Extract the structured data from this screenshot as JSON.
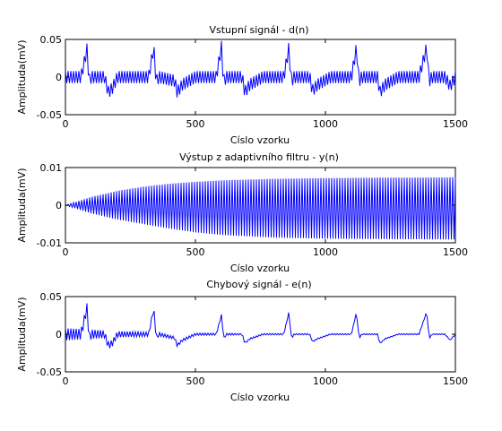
{
  "chart_data": [
    {
      "type": "line",
      "title": "Vstupní signál - d(n)",
      "xlabel": "Císlo vzorku",
      "ylabel": "Amplituda(mV)",
      "xlim": [
        0,
        1500
      ],
      "ylim": [
        -0.05,
        0.05
      ],
      "xticks": [
        0,
        500,
        1000,
        1500
      ],
      "xtick_labels": [
        "0",
        "500",
        "1000",
        "1500"
      ],
      "yticks": [
        -0.05,
        0,
        0.05
      ],
      "ytick_labels": [
        "-0.05",
        "0",
        "0.05"
      ],
      "grid": false,
      "series": [
        {
          "color": "#0000ff",
          "x": [
            0,
            60,
            85,
            88,
            92,
            100,
            150,
            165,
            180,
            200,
            250,
            320,
            340,
            345,
            350,
            360,
            420,
            430,
            450,
            500,
            580,
            600,
            605,
            610,
            620,
            680,
            690,
            710,
            760,
            840,
            860,
            865,
            870,
            880,
            940,
            950,
            970,
            1020,
            1100,
            1120,
            1125,
            1130,
            1140,
            1200,
            1210,
            1230,
            1280,
            1360,
            1390,
            1395,
            1400,
            1410,
            1460,
            1480,
            1500
          ],
          "y": [
            0,
            0,
            0.04,
            0.01,
            -0.005,
            0,
            0,
            -0.02,
            -0.015,
            0,
            0,
            0,
            0.04,
            0.01,
            -0.005,
            0,
            -0.005,
            -0.02,
            -0.01,
            0,
            0,
            0.04,
            0.01,
            -0.005,
            0,
            0,
            -0.02,
            -0.01,
            0,
            0,
            0.04,
            0.01,
            -0.005,
            0,
            0,
            -0.018,
            -0.01,
            0,
            0,
            0.04,
            0.01,
            -0.005,
            0,
            0,
            -0.02,
            -0.01,
            0,
            0,
            0.04,
            0.01,
            -0.005,
            0,
            0,
            -0.012,
            0
          ],
          "oscillation_envelope": {
            "x": [
              0,
              1500
            ],
            "upper": [
              0.008,
              0.008
            ],
            "lower": [
              -0.008,
              -0.008
            ]
          }
        }
      ]
    },
    {
      "type": "line",
      "title": "Výstup z adaptivního filtru - y(n)",
      "xlabel": "Císlo vzorku",
      "ylabel": "Amplituda(mV)",
      "xlim": [
        0,
        1500
      ],
      "ylim": [
        -0.01,
        0.01
      ],
      "xticks": [
        0,
        500,
        1000,
        1500
      ],
      "xtick_labels": [
        "0",
        "500",
        "1000",
        "1500"
      ],
      "yticks": [
        -0.01,
        0,
        0.01
      ],
      "ytick_labels": [
        "-0.01",
        "0",
        "0.01"
      ],
      "grid": false,
      "series": [
        {
          "color": "#0000ff",
          "x": [
            0
          ],
          "y": [
            0
          ],
          "oscillation_envelope": {
            "x": [
              0,
              100,
              200,
              300,
              400,
              500,
              600,
              800,
              1000,
              1200,
              1500
            ],
            "upper": [
              0,
              0.0022,
              0.0038,
              0.0049,
              0.0057,
              0.0062,
              0.0066,
              0.007,
              0.0072,
              0.0073,
              0.0074
            ],
            "lower": [
              0,
              -0.0022,
              -0.0038,
              -0.005,
              -0.0062,
              -0.0072,
              -0.0079,
              -0.0086,
              -0.0089,
              -0.009,
              -0.0091
            ]
          }
        }
      ]
    },
    {
      "type": "line",
      "title": "Chybový signál - e(n)",
      "xlabel": "Císlo vzorku",
      "ylabel": "Amplituda(mV)",
      "xlim": [
        0,
        1500
      ],
      "ylim": [
        -0.05,
        0.05
      ],
      "xticks": [
        0,
        500,
        1000,
        1500
      ],
      "xtick_labels": [
        "0",
        "500",
        "1000",
        "1500"
      ],
      "yticks": [
        -0.05,
        0,
        0.05
      ],
      "ytick_labels": [
        "-0.05",
        "0",
        "0.05"
      ],
      "grid": false,
      "series": [
        {
          "color": "#0000ff",
          "x": [
            0,
            60,
            85,
            88,
            92,
            100,
            150,
            165,
            180,
            200,
            250,
            320,
            340,
            345,
            350,
            360,
            420,
            430,
            450,
            500,
            580,
            600,
            605,
            610,
            620,
            680,
            690,
            710,
            760,
            840,
            860,
            865,
            870,
            880,
            940,
            950,
            970,
            1020,
            1100,
            1120,
            1125,
            1130,
            1140,
            1200,
            1210,
            1230,
            1280,
            1360,
            1390,
            1395,
            1400,
            1410,
            1460,
            1480,
            1500
          ],
          "y": [
            0,
            0,
            0.038,
            0.01,
            -0.005,
            0,
            0,
            -0.015,
            -0.012,
            0,
            0,
            0,
            0.035,
            0.01,
            -0.005,
            0,
            -0.005,
            -0.015,
            -0.008,
            0,
            0,
            0.025,
            0.008,
            -0.005,
            0,
            0,
            -0.012,
            -0.006,
            0,
            0,
            0.03,
            0.008,
            -0.005,
            0,
            0,
            -0.01,
            -0.006,
            0,
            0,
            0.03,
            0.008,
            -0.005,
            0,
            0,
            -0.012,
            -0.006,
            0,
            0,
            0.03,
            0.008,
            -0.005,
            0,
            0,
            -0.008,
            0
          ],
          "oscillation_envelope": {
            "x": [
              0,
              100,
              200,
              300,
              400,
              500,
              700,
              1000,
              1500
            ],
            "upper": [
              0.008,
              0.006,
              0.004,
              0.003,
              0.002,
              0.0015,
              0.001,
              0.0008,
              0.0006
            ],
            "lower": [
              -0.008,
              -0.006,
              -0.004,
              -0.003,
              -0.002,
              -0.0015,
              -0.001,
              -0.0008,
              -0.0006
            ]
          }
        }
      ]
    }
  ]
}
